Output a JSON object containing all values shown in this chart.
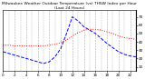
{
  "title": "Milwaukee Weather Outdoor Temperature (vs) THSW Index per Hour (Last 24 Hours)",
  "title_fontsize": 3.2,
  "title_wrap": true,
  "background_color": "#ffffff",
  "grid_color": "#aaaaaa",
  "hours": [
    0,
    1,
    2,
    3,
    4,
    5,
    6,
    7,
    8,
    9,
    10,
    11,
    12,
    13,
    14,
    15,
    16,
    17,
    18,
    19,
    20,
    21,
    22,
    23
  ],
  "temp": [
    36,
    36,
    35,
    35,
    35,
    35,
    35,
    35,
    36,
    37,
    39,
    42,
    47,
    51,
    54,
    55,
    55,
    54,
    52,
    50,
    47,
    45,
    44,
    43
  ],
  "thsw": [
    28,
    26,
    24,
    22,
    20,
    18,
    16,
    14,
    16,
    22,
    32,
    50,
    70,
    65,
    58,
    54,
    50,
    44,
    38,
    33,
    28,
    25,
    23,
    22
  ],
  "temp_color": "#ff0000",
  "thsw_color": "#0000ff",
  "ylabel_right_values": [
    70,
    60,
    50,
    40,
    30,
    20,
    10
  ],
  "ylim": [
    5,
    78
  ],
  "xlim": [
    0,
    23
  ],
  "tick_label_fontsize": 3.0,
  "line_width": 0.7,
  "temp_linestyle": "dotted",
  "thsw_linestyle": "dashed",
  "xtick_step": 2
}
